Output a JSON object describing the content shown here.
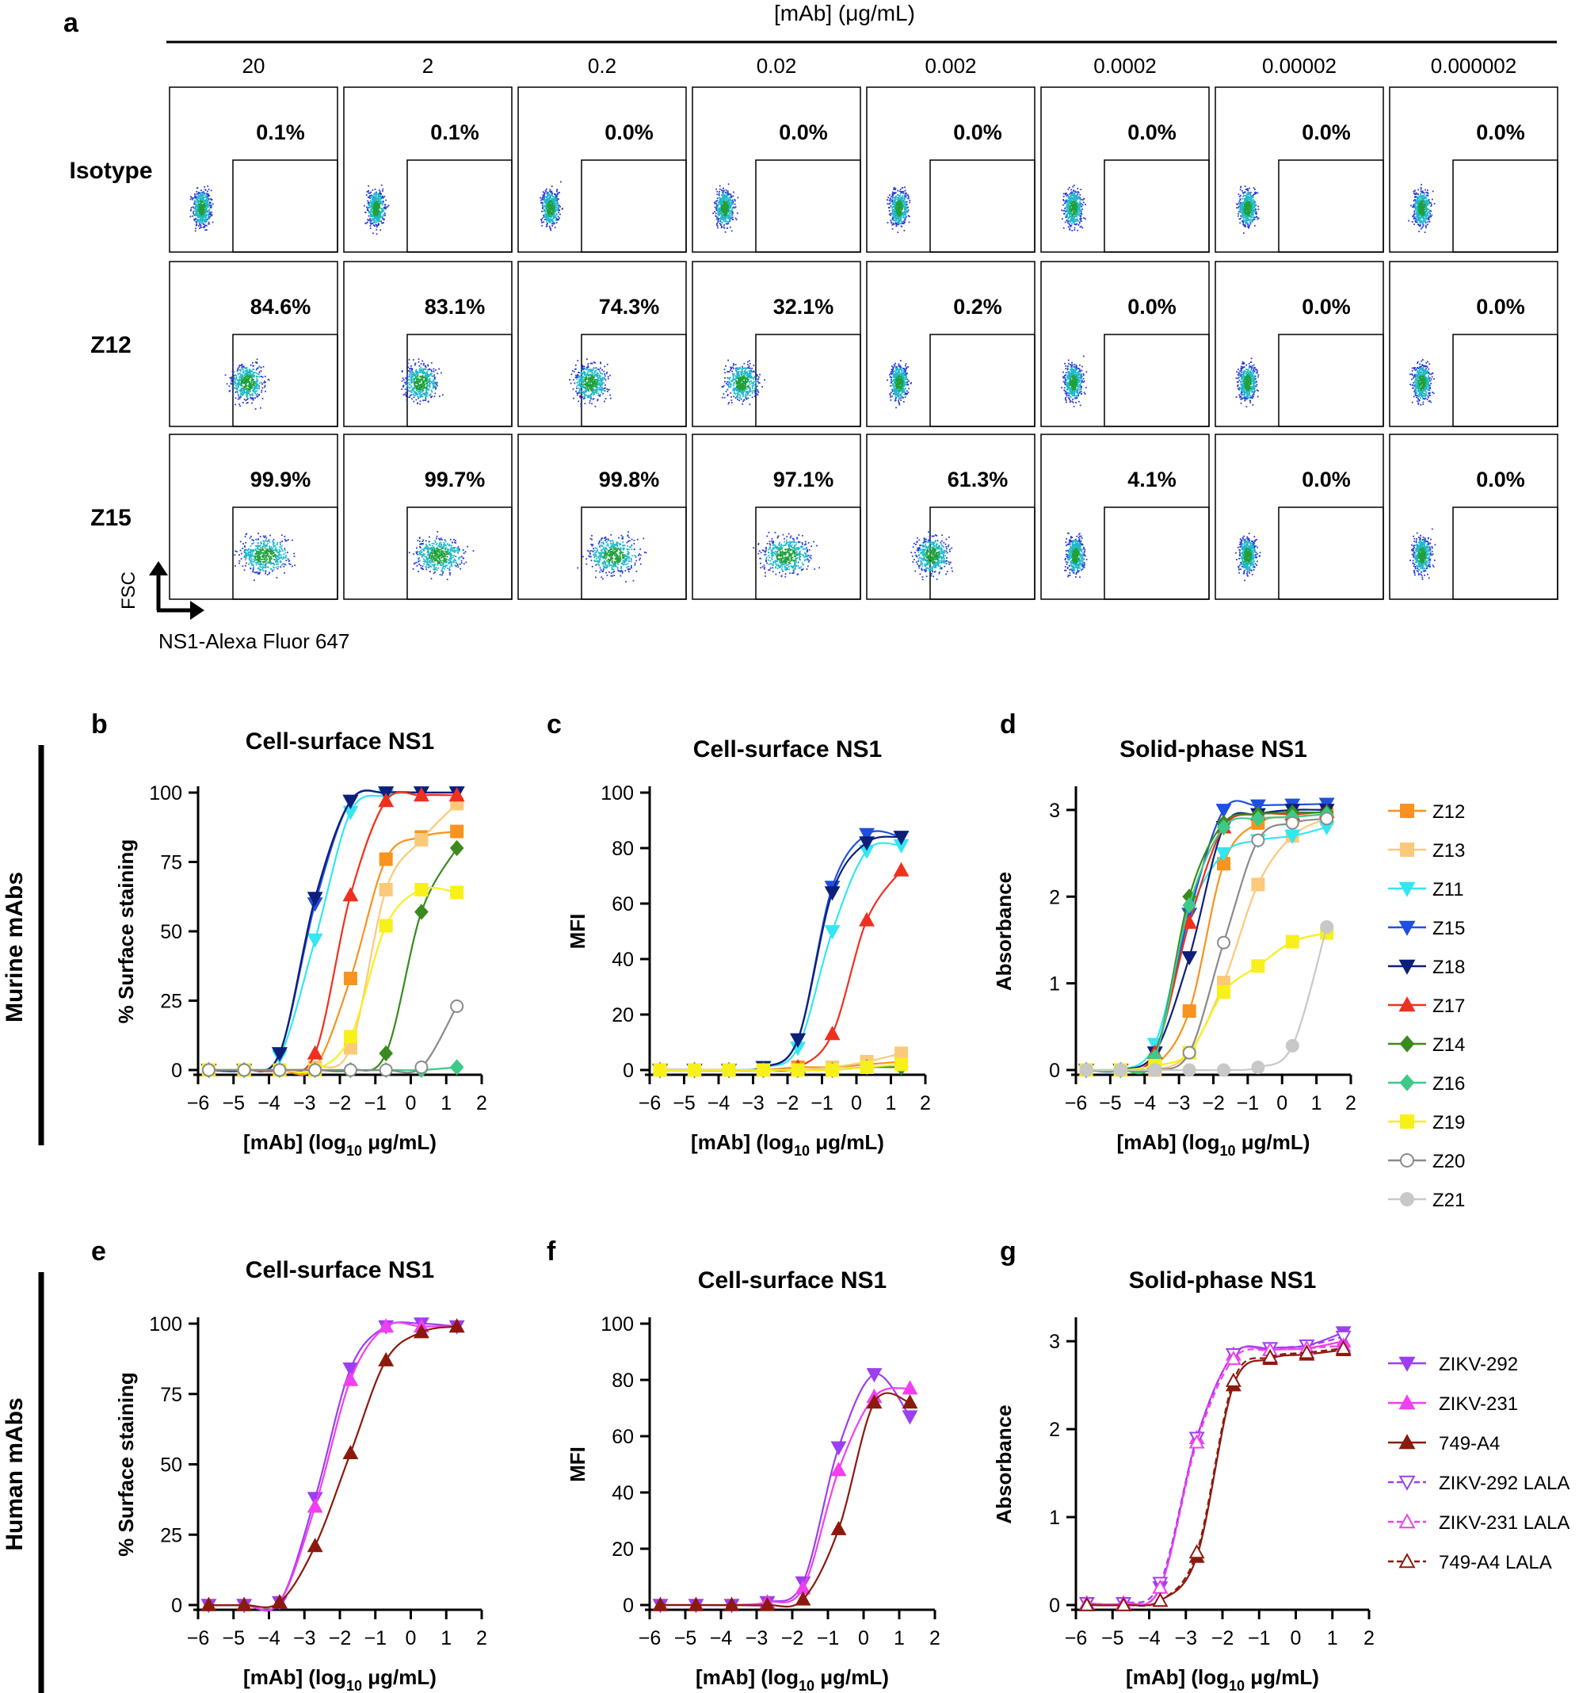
{
  "panel_letters": {
    "a": "a",
    "b": "b",
    "c": "c",
    "d": "d",
    "e": "e",
    "f": "f",
    "g": "g"
  },
  "flow": {
    "header": "[mAb] (μg/mL)",
    "concentrations": [
      "20",
      "2",
      "0.2",
      "0.02",
      "0.002",
      "0.0002",
      "0.00002",
      "0.000002"
    ],
    "rows": [
      {
        "label": "Isotype",
        "values": [
          "0.1%",
          "0.1%",
          "0.0%",
          "0.0%",
          "0.0%",
          "0.0%",
          "0.0%",
          "0.0%"
        ],
        "positive": [
          0,
          0,
          0,
          0,
          0,
          0,
          0,
          0
        ]
      },
      {
        "label": "Z12",
        "values": [
          "84.6%",
          "83.1%",
          "74.3%",
          "32.1%",
          "0.2%",
          "0.0%",
          "0.0%",
          "0.0%"
        ],
        "positive": [
          0.846,
          0.831,
          0.743,
          0.321,
          0.002,
          0,
          0,
          0
        ]
      },
      {
        "label": "Z15",
        "values": [
          "99.9%",
          "99.7%",
          "99.8%",
          "97.1%",
          "61.3%",
          "4.1%",
          "0.0%",
          "0.0%"
        ],
        "positive": [
          0.999,
          0.997,
          0.998,
          0.971,
          0.613,
          0.041,
          0,
          0
        ]
      }
    ],
    "y_axis": "FSC",
    "x_axis": "NS1-Alexa Fluor 647"
  },
  "row_labels": {
    "murine": "Murine mAbs",
    "human": "Human mAbs"
  },
  "legends": {
    "murine": [
      {
        "name": "Z12",
        "color": "#f7931e",
        "marker": "square",
        "open": false
      },
      {
        "name": "Z13",
        "color": "#fcc97a",
        "marker": "square",
        "open": false
      },
      {
        "name": "Z11",
        "color": "#33e6f2",
        "marker": "tri-down",
        "open": false
      },
      {
        "name": "Z15",
        "color": "#1f4fe0",
        "marker": "tri-down",
        "open": false
      },
      {
        "name": "Z18",
        "color": "#0d1f7a",
        "marker": "tri-down",
        "open": false
      },
      {
        "name": "Z17",
        "color": "#f0301e",
        "marker": "tri-up",
        "open": false
      },
      {
        "name": "Z14",
        "color": "#3a8a1e",
        "marker": "diamond",
        "open": false
      },
      {
        "name": "Z16",
        "color": "#3fc987",
        "marker": "diamond",
        "open": false
      },
      {
        "name": "Z19",
        "color": "#f7f01a",
        "marker": "square",
        "open": false
      },
      {
        "name": "Z20",
        "color": "#8a8a8a",
        "marker": "circle",
        "open": true
      },
      {
        "name": "Z21",
        "color": "#c8c8c8",
        "marker": "circle",
        "open": false
      }
    ],
    "human": [
      {
        "name": "ZIKV-292",
        "color": "#9b3ff0",
        "marker": "tri-down",
        "open": false,
        "dash": false
      },
      {
        "name": "ZIKV-231",
        "color": "#f03ff0",
        "marker": "tri-up",
        "open": false,
        "dash": false
      },
      {
        "name": "749-A4",
        "color": "#8b1a0d",
        "marker": "tri-up",
        "open": false,
        "dash": false
      },
      {
        "name": "ZIKV-292 LALA",
        "color": "#9b3ff0",
        "marker": "tri-down",
        "open": true,
        "dash": true
      },
      {
        "name": "ZIKV-231 LALA",
        "color": "#f03ff0",
        "marker": "tri-up",
        "open": true,
        "dash": true
      },
      {
        "name": "749-A4 LALA",
        "color": "#8b1a0d",
        "marker": "tri-up",
        "open": true,
        "dash": true
      }
    ]
  },
  "chart_data": [
    {
      "id": "b",
      "type": "line",
      "title": "Cell-surface NS1",
      "xlabel": "[mAb] (log10 μg/mL)",
      "ylabel": "% Surface staining",
      "xlim": [
        -6,
        2
      ],
      "ylim": [
        0,
        100
      ],
      "xticks": [
        -6,
        -5,
        -4,
        -3,
        -2,
        -1,
        0,
        1,
        2
      ],
      "yticks": [
        0,
        25,
        50,
        75,
        100
      ],
      "x": [
        -5.7,
        -4.7,
        -3.7,
        -2.7,
        -1.7,
        -0.7,
        0.3,
        1.3
      ],
      "series": [
        {
          "name": "Z12",
          "values": [
            0,
            0,
            0,
            1,
            33,
            76,
            84,
            86
          ]
        },
        {
          "name": "Z13",
          "values": [
            0,
            0,
            0,
            1,
            8,
            65,
            83,
            96
          ]
        },
        {
          "name": "Z11",
          "values": [
            0,
            0,
            5,
            47,
            93,
            99,
            100,
            100
          ]
        },
        {
          "name": "Z15",
          "values": [
            0,
            0,
            6,
            60,
            97,
            100,
            100,
            100
          ]
        },
        {
          "name": "Z18",
          "values": [
            0,
            0,
            6,
            62,
            97,
            100,
            100,
            100
          ]
        },
        {
          "name": "Z17",
          "values": [
            0,
            0,
            0,
            6,
            63,
            97,
            99,
            99
          ]
        },
        {
          "name": "Z14",
          "values": [
            0,
            0,
            0,
            0,
            0,
            6,
            57,
            80
          ]
        },
        {
          "name": "Z16",
          "values": [
            0,
            0,
            0,
            0,
            0,
            0,
            0,
            1
          ]
        },
        {
          "name": "Z19",
          "values": [
            0,
            0,
            0,
            0,
            12,
            52,
            65,
            64
          ]
        },
        {
          "name": "Z20",
          "values": [
            0,
            0,
            0,
            0,
            0,
            0,
            1,
            23
          ]
        }
      ]
    },
    {
      "id": "c",
      "type": "line",
      "title": "Cell-surface NS1",
      "xlabel": "[mAb] (log10 μg/mL)",
      "ylabel": "MFI",
      "xlim": [
        -6,
        2
      ],
      "ylim": [
        0,
        100
      ],
      "xticks": [
        -6,
        -5,
        -4,
        -3,
        -2,
        -1,
        0,
        1,
        2
      ],
      "yticks": [
        0,
        20,
        40,
        60,
        80,
        100
      ],
      "x": [
        -5.7,
        -4.7,
        -3.7,
        -2.7,
        -1.7,
        -0.7,
        0.3,
        1.3
      ],
      "series": [
        {
          "name": "Z12",
          "values": [
            0,
            0,
            0,
            0,
            1,
            1,
            2,
            3
          ]
        },
        {
          "name": "Z13",
          "values": [
            0,
            0,
            0,
            0,
            0,
            1,
            3,
            6
          ]
        },
        {
          "name": "Z11",
          "values": [
            0,
            0,
            0,
            1,
            8,
            50,
            79,
            81
          ]
        },
        {
          "name": "Z15",
          "values": [
            0,
            0,
            0,
            1,
            11,
            66,
            85,
            84
          ]
        },
        {
          "name": "Z18",
          "values": [
            0,
            0,
            0,
            1,
            11,
            64,
            82,
            84
          ]
        },
        {
          "name": "Z17",
          "values": [
            0,
            0,
            0,
            0,
            1,
            13,
            54,
            72
          ]
        },
        {
          "name": "Z14",
          "values": [
            0,
            0,
            0,
            0,
            0,
            0,
            1,
            1
          ]
        },
        {
          "name": "Z19",
          "values": [
            0,
            0,
            0,
            0,
            0,
            0,
            1,
            2
          ]
        }
      ]
    },
    {
      "id": "d",
      "type": "line",
      "title": "Solid-phase NS1",
      "xlabel": "[mAb] (log10 μg/mL)",
      "ylabel": "Absorbance",
      "xlim": [
        -6,
        2
      ],
      "ylim": [
        0,
        3.2
      ],
      "xticks": [
        -6,
        -5,
        -4,
        -3,
        -2,
        -1,
        0,
        1,
        2
      ],
      "yticks": [
        0,
        1,
        2,
        3
      ],
      "x": [
        -5.7,
        -4.7,
        -3.7,
        -2.7,
        -1.7,
        -0.7,
        0.3,
        1.3
      ],
      "series": [
        {
          "name": "Z12",
          "values": [
            0,
            0,
            0.05,
            0.68,
            2.38,
            2.85,
            2.92,
            2.95
          ]
        },
        {
          "name": "Z13",
          "values": [
            0,
            0,
            0,
            0.2,
            1.01,
            2.14,
            2.7,
            2.9
          ]
        },
        {
          "name": "Z11",
          "values": [
            0,
            0,
            0.3,
            1.8,
            2.5,
            2.65,
            2.7,
            2.8
          ]
        },
        {
          "name": "Z15",
          "values": [
            0,
            0,
            0.2,
            1.8,
            3.0,
            3.05,
            3.06,
            3.07
          ]
        },
        {
          "name": "Z18",
          "values": [
            0,
            0,
            0.2,
            1.3,
            2.8,
            2.95,
            3.0,
            3.0
          ]
        },
        {
          "name": "Z17",
          "values": [
            0,
            0,
            0.2,
            1.7,
            2.8,
            2.95,
            2.95,
            2.98
          ]
        },
        {
          "name": "Z14",
          "values": [
            0,
            0,
            0.15,
            2.0,
            2.85,
            2.95,
            2.97,
            2.97
          ]
        },
        {
          "name": "Z16",
          "values": [
            0,
            0,
            0.15,
            1.9,
            2.8,
            2.9,
            2.92,
            2.95
          ]
        },
        {
          "name": "Z19",
          "values": [
            0,
            0,
            0.05,
            0.2,
            0.9,
            1.2,
            1.48,
            1.58
          ]
        },
        {
          "name": "Z20",
          "values": [
            0,
            0,
            0,
            0.2,
            1.47,
            2.65,
            2.85,
            2.9
          ]
        },
        {
          "name": "Z21",
          "values": [
            0,
            0,
            0,
            0,
            0,
            0.03,
            0.28,
            1.65
          ]
        }
      ]
    },
    {
      "id": "e",
      "type": "line",
      "title": "Cell-surface NS1",
      "xlabel": "[mAb] (log10 μg/mL)",
      "ylabel": "% Surface staining",
      "xlim": [
        -6,
        2
      ],
      "ylim": [
        0,
        100
      ],
      "xticks": [
        -6,
        -5,
        -4,
        -3,
        -2,
        -1,
        0,
        1,
        2
      ],
      "yticks": [
        0,
        25,
        50,
        75,
        100
      ],
      "x": [
        -5.7,
        -4.7,
        -3.7,
        -2.7,
        -1.7,
        -0.7,
        0.3,
        1.3
      ],
      "series": [
        {
          "name": "ZIKV-292",
          "values": [
            0,
            0,
            1,
            38,
            84,
            99,
            100,
            99
          ]
        },
        {
          "name": "ZIKV-231",
          "values": [
            0,
            0,
            1,
            35,
            80,
            99,
            99,
            99
          ]
        },
        {
          "name": "749-A4",
          "values": [
            0,
            0,
            1,
            21,
            54,
            87,
            97,
            99
          ]
        }
      ]
    },
    {
      "id": "f",
      "type": "line",
      "title": "Cell-surface NS1",
      "xlabel": "[mAb] (log10 μg/mL)",
      "ylabel": "MFI",
      "xlim": [
        -6,
        2
      ],
      "ylim": [
        0,
        100
      ],
      "xticks": [
        -6,
        -5,
        -4,
        -3,
        -2,
        -1,
        0,
        1,
        2
      ],
      "yticks": [
        0,
        20,
        40,
        60,
        80,
        100
      ],
      "x": [
        -5.7,
        -4.7,
        -3.7,
        -2.7,
        -1.7,
        -0.7,
        0.3,
        1.3
      ],
      "series": [
        {
          "name": "ZIKV-292",
          "values": [
            0,
            0,
            0,
            1,
            8,
            56,
            82,
            67
          ]
        },
        {
          "name": "ZIKV-231",
          "values": [
            0,
            0,
            0,
            1,
            6,
            48,
            74,
            77
          ]
        },
        {
          "name": "749-A4",
          "values": [
            0,
            0,
            0,
            0,
            2,
            27,
            72,
            72
          ]
        }
      ]
    },
    {
      "id": "g",
      "type": "line",
      "title": "Solid-phase NS1",
      "xlabel": "[mAb] (log10 μg/mL)",
      "ylabel": "Absorbance",
      "xlim": [
        -6,
        2
      ],
      "ylim": [
        0,
        3.2
      ],
      "xticks": [
        -6,
        -5,
        -4,
        -3,
        -2,
        -1,
        0,
        1,
        2
      ],
      "yticks": [
        0,
        1,
        2,
        3
      ],
      "x": [
        -5.7,
        -4.7,
        -3.7,
        -2.7,
        -1.7,
        -0.7,
        0.3,
        1.3
      ],
      "series": [
        {
          "name": "ZIKV-292",
          "values": [
            0.02,
            0.02,
            0.2,
            1.9,
            2.85,
            2.92,
            2.95,
            3.1
          ]
        },
        {
          "name": "ZIKV-231",
          "values": [
            0.02,
            0.02,
            0.2,
            1.9,
            2.85,
            2.9,
            2.92,
            3.0
          ]
        },
        {
          "name": "749-A4",
          "values": [
            0,
            0,
            0.05,
            0.55,
            2.5,
            2.8,
            2.85,
            2.9
          ]
        },
        {
          "name": "ZIKV-292 LALA",
          "values": [
            0.02,
            0.02,
            0.25,
            1.9,
            2.85,
            2.92,
            2.95,
            3.05
          ]
        },
        {
          "name": "ZIKV-231 LALA",
          "values": [
            0.02,
            0.02,
            0.2,
            1.85,
            2.8,
            2.9,
            2.92,
            2.95
          ]
        },
        {
          "name": "749-A4 LALA",
          "values": [
            0,
            0,
            0.05,
            0.6,
            2.55,
            2.82,
            2.87,
            2.92
          ]
        }
      ]
    }
  ]
}
